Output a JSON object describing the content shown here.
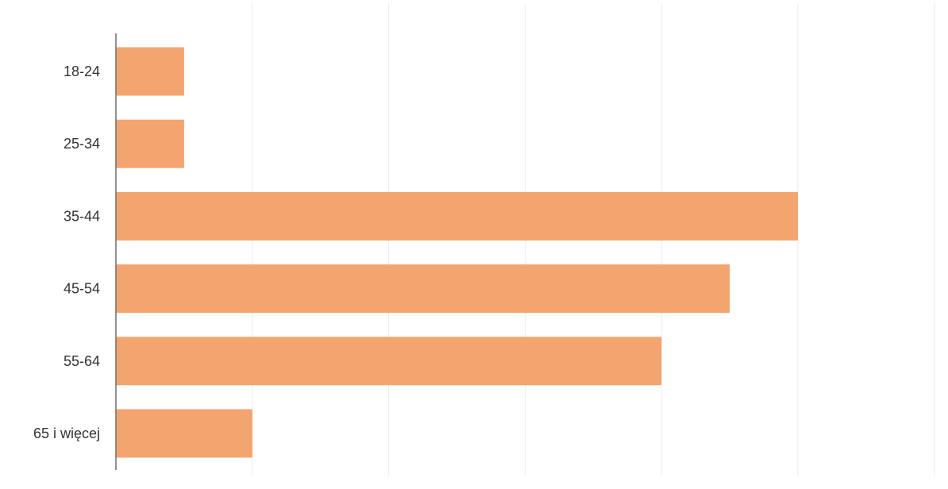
{
  "chart_data": {
    "type": "bar",
    "orientation": "horizontal",
    "title": "",
    "xlabel": "",
    "ylabel": "",
    "categories": [
      "18-24",
      "25-34",
      "35-44",
      "45-54",
      "55-64",
      "65 i więcej"
    ],
    "values": [
      1,
      1,
      10,
      9,
      8,
      2
    ],
    "xlim": [
      0,
      12
    ],
    "grid": true,
    "tick_labels_shown": false,
    "legend": "none",
    "bar_color": "#F4A46E"
  }
}
